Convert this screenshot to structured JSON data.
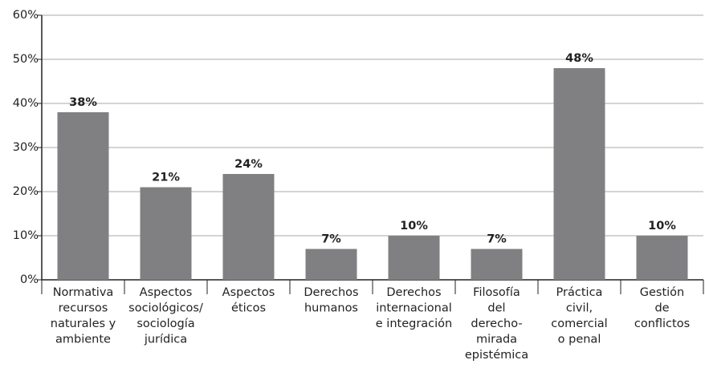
{
  "chart_data": {
    "type": "bar",
    "categories": [
      [
        "Normativa",
        "recursos",
        "naturales y",
        "ambiente"
      ],
      [
        "Aspectos",
        "sociológicos/",
        "sociología",
        "jurídica"
      ],
      [
        "Aspectos",
        "éticos"
      ],
      [
        "Derechos",
        "humanos"
      ],
      [
        "Derechos",
        "internacional",
        "e integración"
      ],
      [
        "Filosofía",
        "del",
        "derecho-",
        "mirada",
        "epistémica"
      ],
      [
        "Práctica",
        "civil,",
        "comercial",
        "o penal"
      ],
      [
        "Gestión",
        "de",
        "conflictos"
      ]
    ],
    "values": [
      38,
      21,
      24,
      7,
      10,
      7,
      48,
      10
    ],
    "value_labels": [
      "38%",
      "21%",
      "24%",
      "7%",
      "10%",
      "7%",
      "48%",
      "10%"
    ],
    "color": "#808083",
    "ylim": [
      0,
      60
    ],
    "yticks": [
      {
        "value": 0,
        "label": "0%"
      },
      {
        "value": 10,
        "label": "10%"
      },
      {
        "value": 20,
        "label": "20%"
      },
      {
        "value": 30,
        "label": "30%"
      },
      {
        "value": 40,
        "label": "40%"
      },
      {
        "value": 50,
        "label": "50%"
      },
      {
        "value": 60,
        "label": "60%"
      }
    ],
    "grid": true
  }
}
